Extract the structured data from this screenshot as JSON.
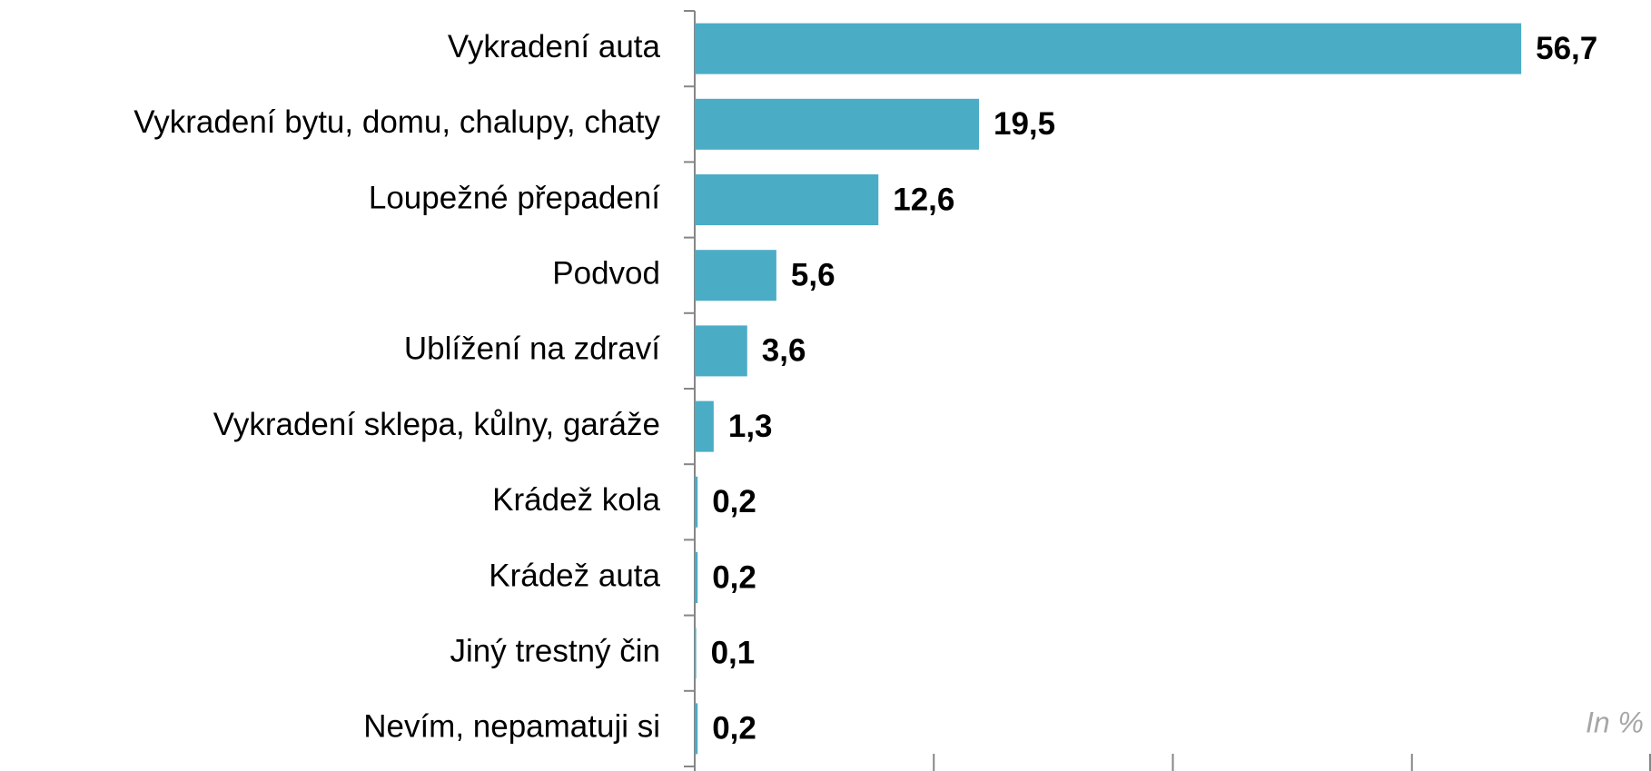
{
  "chart_data": {
    "type": "bar",
    "orientation": "horizontal",
    "categories": [
      "Vykradení auta",
      "Vykradení bytu, domu, chalupy, chaty",
      "Loupežné přepadení",
      "Podvod",
      "Ublížení na zdraví",
      "Vykradení sklepa, kůlny, garáže",
      "Krádež kola",
      "Krádež auta",
      "Jiný trestný čin",
      "Nevím, nepamatuji si"
    ],
    "values": [
      56.7,
      19.5,
      12.6,
      5.6,
      3.6,
      1.3,
      0.2,
      0.2,
      0.1,
      0.2
    ],
    "value_labels": [
      "56,7",
      "19,5",
      "12,6",
      "5,6",
      "3,6",
      "1,3",
      "0,2",
      "0,2",
      "0,1",
      "0,2"
    ],
    "color": "#4bacc6",
    "xlim": [
      0,
      65.6
    ],
    "xticks": [
      0,
      16.4,
      32.8,
      49.2,
      65.6
    ],
    "annotation": "In %"
  }
}
